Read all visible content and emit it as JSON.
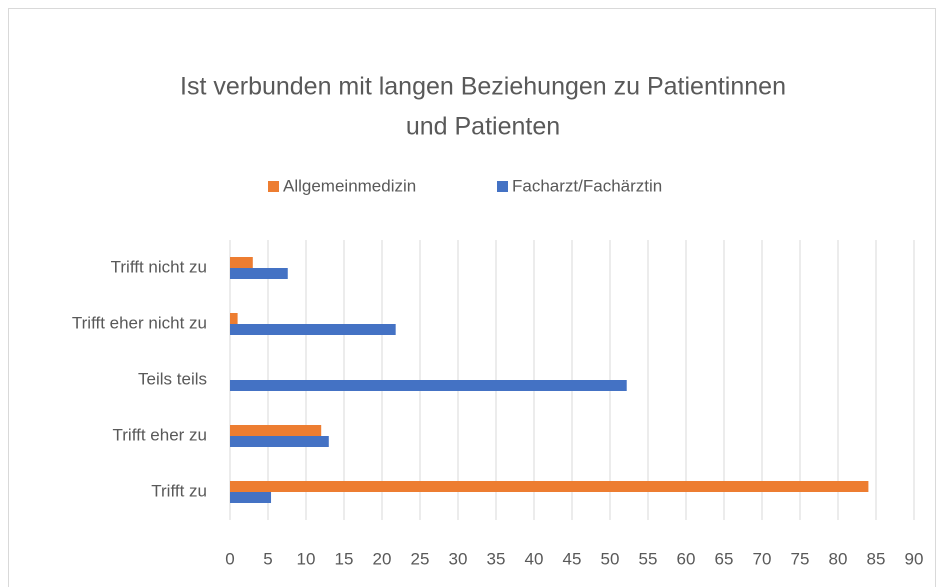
{
  "chart_data": {
    "type": "hbar",
    "title": [
      "Ist verbunden mit langen Beziehungen zu Patientinnen",
      "und Patienten"
    ],
    "categories": [
      "Trifft nicht zu",
      "Trifft eher nicht zu",
      "Teils teils",
      "Trifft eher zu",
      "Trifft zu"
    ],
    "series": [
      {
        "name": "Allgemeinmedizin",
        "color": "#ed7d31",
        "values": [
          3,
          1,
          0,
          12,
          84
        ]
      },
      {
        "name": "Facharzt/Fachärztin",
        "color": "#4472c4",
        "values": [
          7.6,
          21.8,
          52.2,
          13,
          5.4
        ]
      }
    ],
    "xlim": [
      0,
      90
    ],
    "xticks": [
      0,
      5,
      10,
      15,
      20,
      25,
      30,
      35,
      40,
      45,
      50,
      55,
      60,
      65,
      70,
      75,
      80,
      85,
      90
    ],
    "grid": true,
    "legend": "top"
  }
}
